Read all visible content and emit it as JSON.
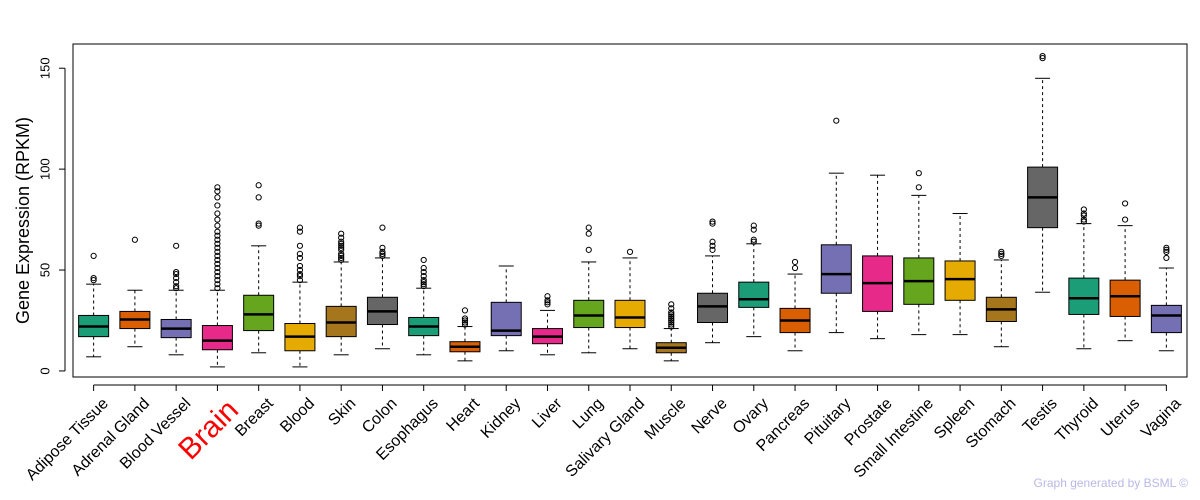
{
  "chart_data": {
    "type": "box",
    "ylabel": "Gene Expression (RPKM)",
    "xlabel": "",
    "ylim": [
      -3,
      162
    ],
    "yticks": [
      0,
      50,
      100,
      150
    ],
    "highlight": "Brain",
    "highlight_color": "#ff0000",
    "categories": [
      {
        "name": "Adipose Tissue",
        "color": "#1b9e77",
        "wlo": 7,
        "q1": 17,
        "med": 22,
        "q3": 27.5,
        "whi": 43,
        "out": [
          45,
          46,
          57
        ]
      },
      {
        "name": "Adrenal Gland",
        "color": "#d95f02",
        "wlo": 12,
        "q1": 21,
        "med": 25.5,
        "q3": 29.5,
        "whi": 40,
        "out": [
          65
        ]
      },
      {
        "name": "Blood Vessel",
        "color": "#7570b3",
        "wlo": 8,
        "q1": 16.5,
        "med": 21,
        "q3": 25.5,
        "whi": 40,
        "out": [
          41,
          42,
          44,
          46,
          48,
          49,
          62
        ]
      },
      {
        "name": "Brain",
        "color": "#e7298a",
        "wlo": 2,
        "q1": 10.5,
        "med": 15,
        "q3": 22.5,
        "whi": 40,
        "out": [
          41,
          43,
          45,
          47,
          49,
          51,
          53,
          55,
          57,
          59,
          61,
          63,
          65,
          67,
          69,
          72,
          75,
          78,
          82,
          86,
          89,
          91
        ]
      },
      {
        "name": "Breast",
        "color": "#66a61e",
        "wlo": 9,
        "q1": 20,
        "med": 28,
        "q3": 37.5,
        "whi": 62,
        "out": [
          72,
          73,
          86,
          92
        ]
      },
      {
        "name": "Blood",
        "color": "#e6ab02",
        "wlo": 2,
        "q1": 10,
        "med": 17,
        "q3": 23.5,
        "whi": 44,
        "out": [
          45,
          47,
          48,
          50,
          52,
          56,
          58,
          62,
          69,
          71
        ]
      },
      {
        "name": "Skin",
        "color": "#a6761d",
        "wlo": 8,
        "q1": 17,
        "med": 24,
        "q3": 32,
        "whi": 54,
        "out": [
          55,
          56,
          57,
          58,
          60,
          61,
          62,
          63,
          64,
          66,
          68
        ]
      },
      {
        "name": "Colon",
        "color": "#666666",
        "wlo": 11,
        "q1": 23,
        "med": 29.5,
        "q3": 36.5,
        "whi": 56,
        "out": [
          57,
          58,
          59,
          61,
          71
        ]
      },
      {
        "name": "Esophagus",
        "color": "#1b9e77",
        "wlo": 8,
        "q1": 17.5,
        "med": 22,
        "q3": 26.5,
        "whi": 41,
        "out": [
          42,
          43,
          44,
          45,
          47,
          49,
          51,
          55
        ]
      },
      {
        "name": "Heart",
        "color": "#d95f02",
        "wlo": 5,
        "q1": 9.5,
        "med": 12,
        "q3": 14.5,
        "whi": 22,
        "out": [
          23,
          24,
          25,
          26,
          30
        ]
      },
      {
        "name": "Kidney",
        "color": "#7570b3",
        "wlo": 10,
        "q1": 17.5,
        "med": 20,
        "q3": 34,
        "whi": 52,
        "out": []
      },
      {
        "name": "Liver",
        "color": "#e7298a",
        "wlo": 8,
        "q1": 13.5,
        "med": 17,
        "q3": 21,
        "whi": 30,
        "out": [
          33,
          34,
          35,
          37
        ]
      },
      {
        "name": "Lung",
        "color": "#66a61e",
        "wlo": 9,
        "q1": 21.5,
        "med": 27.5,
        "q3": 35,
        "whi": 54,
        "out": [
          60,
          68,
          71
        ]
      },
      {
        "name": "Salivary Gland",
        "color": "#e6ab02",
        "wlo": 11,
        "q1": 21.5,
        "med": 26.5,
        "q3": 35,
        "whi": 56,
        "out": [
          59
        ]
      },
      {
        "name": "Muscle",
        "color": "#a6761d",
        "wlo": 5,
        "q1": 9,
        "med": 11.5,
        "q3": 14,
        "whi": 21,
        "out": [
          22,
          23,
          24,
          25,
          26,
          27,
          28,
          29,
          31,
          33
        ]
      },
      {
        "name": "Nerve",
        "color": "#666666",
        "wlo": 14,
        "q1": 24,
        "med": 32,
        "q3": 38.5,
        "whi": 57,
        "out": [
          60,
          62,
          64,
          73,
          74
        ]
      },
      {
        "name": "Ovary",
        "color": "#1b9e77",
        "wlo": 17,
        "q1": 31.5,
        "med": 35.5,
        "q3": 44,
        "whi": 63,
        "out": [
          64,
          65,
          70,
          72
        ]
      },
      {
        "name": "Pancreas",
        "color": "#d95f02",
        "wlo": 10,
        "q1": 19,
        "med": 25,
        "q3": 31,
        "whi": 48,
        "out": [
          51,
          54
        ]
      },
      {
        "name": "Pituitary",
        "color": "#7570b3",
        "wlo": 19,
        "q1": 38.5,
        "med": 48,
        "q3": 62.5,
        "whi": 98,
        "out": [
          124
        ]
      },
      {
        "name": "Prostate",
        "color": "#e7298a",
        "wlo": 16,
        "q1": 29.5,
        "med": 43.5,
        "q3": 57,
        "whi": 97,
        "out": []
      },
      {
        "name": "Small Intestine",
        "color": "#66a61e",
        "wlo": 18,
        "q1": 33,
        "med": 44.5,
        "q3": 56,
        "whi": 87,
        "out": [
          91,
          98
        ]
      },
      {
        "name": "Spleen",
        "color": "#e6ab02",
        "wlo": 18,
        "q1": 35,
        "med": 45.5,
        "q3": 54.5,
        "whi": 78,
        "out": []
      },
      {
        "name": "Stomach",
        "color": "#a6761d",
        "wlo": 12,
        "q1": 24.5,
        "med": 30.5,
        "q3": 36.5,
        "whi": 55,
        "out": [
          57,
          58,
          59
        ]
      },
      {
        "name": "Testis",
        "color": "#666666",
        "wlo": 39,
        "q1": 71,
        "med": 86,
        "q3": 101,
        "whi": 145,
        "out": [
          155,
          156
        ]
      },
      {
        "name": "Thyroid",
        "color": "#1b9e77",
        "wlo": 11,
        "q1": 28,
        "med": 36,
        "q3": 46,
        "whi": 73,
        "out": [
          74,
          75,
          77,
          78,
          80
        ]
      },
      {
        "name": "Uterus",
        "color": "#d95f02",
        "wlo": 15,
        "q1": 27,
        "med": 37,
        "q3": 45,
        "whi": 72,
        "out": [
          75,
          83
        ]
      },
      {
        "name": "Vagina",
        "color": "#7570b3",
        "wlo": 10,
        "q1": 19,
        "med": 27.5,
        "q3": 32.5,
        "whi": 51,
        "out": [
          56,
          59,
          60,
          61
        ]
      }
    ]
  },
  "footer": "Graph generated by BSML ©"
}
